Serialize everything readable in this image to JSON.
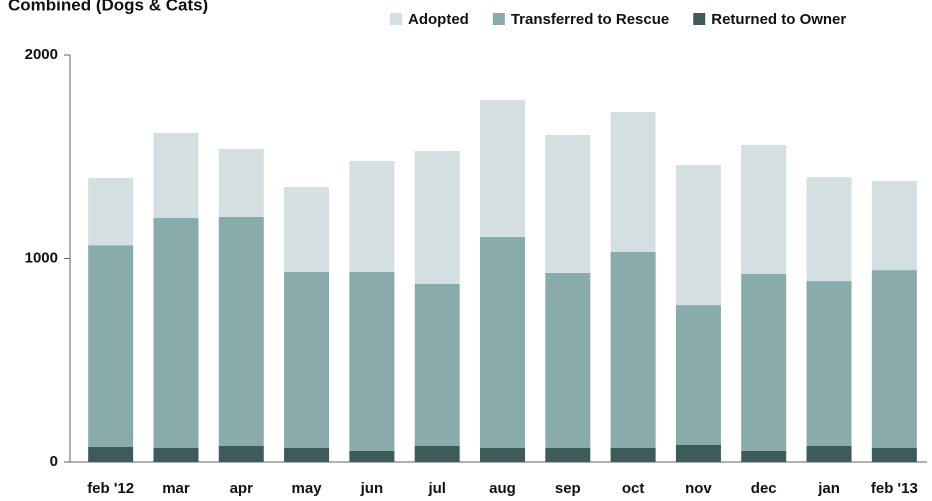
{
  "chart_data": {
    "type": "stacked_bar",
    "title": "Combined (Dogs & Cats)",
    "categories": [
      "feb '12",
      "mar",
      "apr",
      "may",
      "jun",
      "jul",
      "aug",
      "sep",
      "oct",
      "nov",
      "dec",
      "jan",
      "feb '13"
    ],
    "series": [
      {
        "name": "Adopted",
        "color": "#d3dfe0",
        "values": [
          330,
          418,
          334,
          417,
          545,
          653,
          673,
          678,
          688,
          688,
          634,
          511,
          438
        ]
      },
      {
        "name": "Transferred to Rescue",
        "color": "#8aabab",
        "values": [
          990,
          1129,
          1124,
          864,
          879,
          795,
          1036,
          859,
          962,
          686,
          869,
          809,
          873
        ]
      },
      {
        "name": "Returned to Owner",
        "color": "#3e5b5b",
        "values": [
          75,
          70,
          80,
          70,
          55,
          80,
          70,
          70,
          70,
          85,
          55,
          80,
          70
        ]
      }
    ],
    "ylim": [
      0,
      2000
    ],
    "yticks": [
      0,
      1000,
      2000
    ],
    "grid": false,
    "legend": "top-right"
  }
}
